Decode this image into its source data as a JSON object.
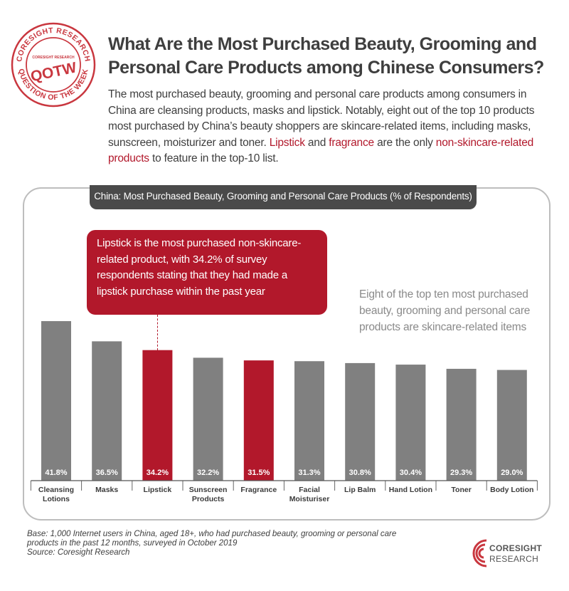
{
  "stamp": {
    "ring_text_top": "CORESIGHT RESEARCH",
    "ring_text_bottom": "QUESTION OF THE WEEK",
    "mini_logo": "CORESIGHT RESEARCH",
    "code": "QOTW",
    "color": "#c9373f"
  },
  "headline": {
    "line1": "What Are the Most Purchased Beauty, Grooming and",
    "line2": "Personal Care Products among Chinese Consumers?"
  },
  "intro": {
    "p1": "The most purchased beauty, grooming and personal care products among consumers in China are cleansing products, masks and lipstick. Notably, eight out of the top 10 products most purchased by China’s beauty shoppers are skincare-related items, including masks, sunscreen, moisturizer and toner.",
    "hl1": "Lipstick",
    "and": "and",
    "hl2": "fragrance",
    "mid": "are the only",
    "hl3": "non-skincare-related products",
    "end": "to feature in the top-10 list."
  },
  "callout": "Lipstick is the most purchased non-skincare-related product, with 34.2% of survey respondents stating that they had made a lipstick purchase within the past year",
  "side_note": "Eight of the top ten most purchased beauty, grooming and personal care products are skincare-related items",
  "chart_data": {
    "type": "bar",
    "title": "China: Most Purchased Beauty, Grooming and Personal Care Products (% of Respondents)",
    "categories": [
      "Cleansing Lotions",
      "Masks",
      "Lipstick",
      "Sunscreen Products",
      "Fragrance",
      "Facial Moisturiser",
      "Lip Balm",
      "Hand Lotion",
      "Toner",
      "Body Lotion"
    ],
    "values": [
      41.8,
      36.5,
      34.2,
      32.2,
      31.5,
      31.3,
      30.8,
      30.4,
      29.3,
      29.0
    ],
    "labels": [
      "41.8%",
      "36.5%",
      "34.2%",
      "32.2%",
      "31.5%",
      "31.3%",
      "30.8%",
      "30.4%",
      "29.3%",
      "29.0%"
    ],
    "highlight": [
      false,
      false,
      true,
      false,
      true,
      false,
      false,
      false,
      false,
      false
    ],
    "colors": {
      "default": "#808080",
      "highlight": "#b2182b"
    },
    "ylim": [
      0,
      42
    ],
    "grid": false,
    "legend": "none"
  },
  "footnote": {
    "line1": "Base: 1,000 Internet users in China, aged 18+, who had purchased beauty, grooming or personal care",
    "line2": "products in the past 12 months, surveyed in October 2019",
    "line3": "Source: Coresight Research"
  },
  "brand": {
    "name": "CORESIGHT",
    "sub": "RESEARCH",
    "color": "#c9373f"
  }
}
